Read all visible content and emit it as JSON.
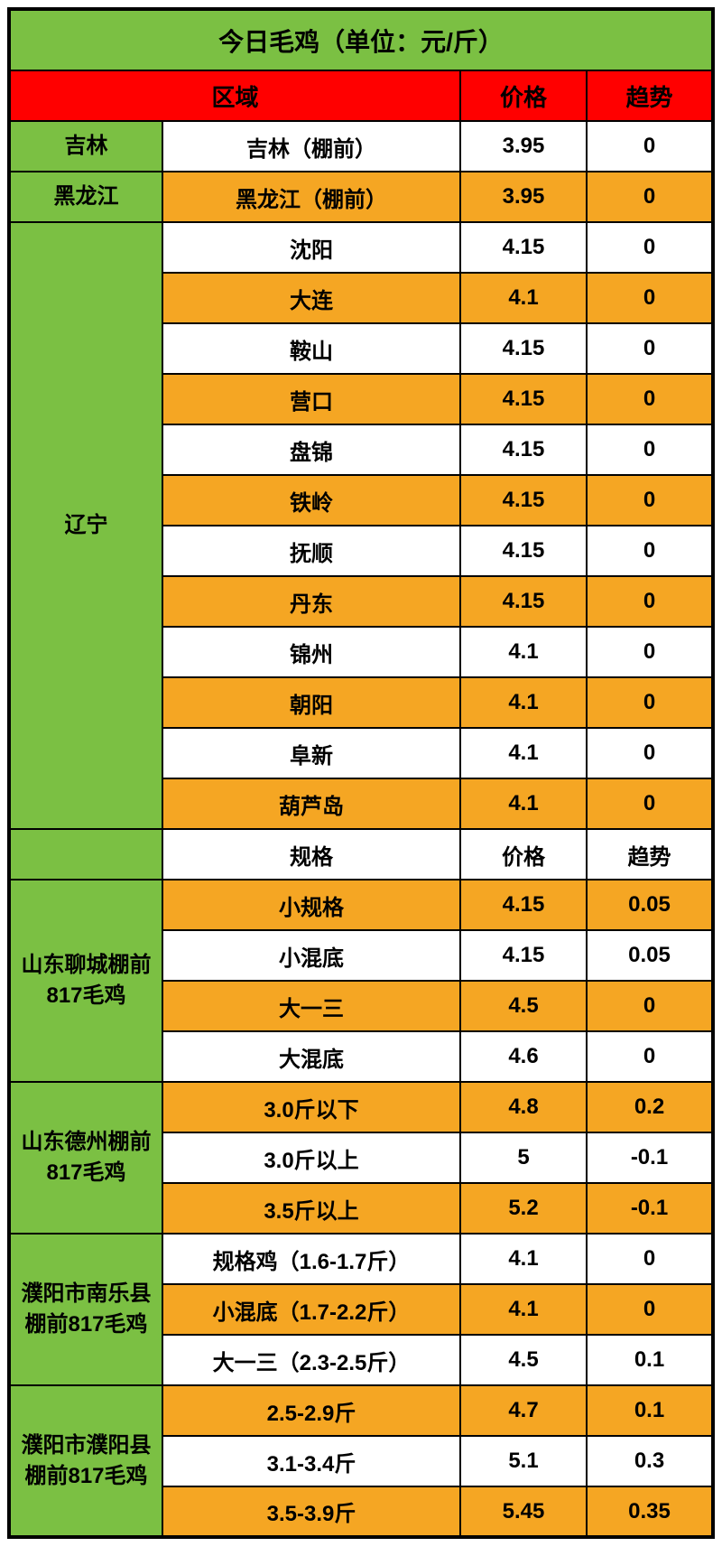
{
  "title": "今日毛鸡（单位：元/斤）",
  "headers": {
    "region": "区域",
    "price": "价格",
    "trend": "趋势",
    "spec": "规格"
  },
  "colors": {
    "green": "#7bc043",
    "red": "#ff0000",
    "orange": "#f5a623",
    "white": "#ffffff",
    "border": "#000000",
    "text": "#000000"
  },
  "fontsize": {
    "title": 28,
    "header": 26,
    "cell": 24
  },
  "sections": [
    {
      "region": "吉林",
      "rows": [
        {
          "spec": "吉林（棚前）",
          "price": "3.95",
          "trend": "0",
          "bg": "white"
        }
      ]
    },
    {
      "region": "黑龙江",
      "rows": [
        {
          "spec": "黑龙江（棚前）",
          "price": "3.95",
          "trend": "0",
          "bg": "orange"
        }
      ]
    },
    {
      "region": "辽宁",
      "rows": [
        {
          "spec": "沈阳",
          "price": "4.15",
          "trend": "0",
          "bg": "white"
        },
        {
          "spec": "大连",
          "price": "4.1",
          "trend": "0",
          "bg": "orange"
        },
        {
          "spec": "鞍山",
          "price": "4.15",
          "trend": "0",
          "bg": "white"
        },
        {
          "spec": "营口",
          "price": "4.15",
          "trend": "0",
          "bg": "orange"
        },
        {
          "spec": "盘锦",
          "price": "4.15",
          "trend": "0",
          "bg": "white"
        },
        {
          "spec": "铁岭",
          "price": "4.15",
          "trend": "0",
          "bg": "orange"
        },
        {
          "spec": "抚顺",
          "price": "4.15",
          "trend": "0",
          "bg": "white"
        },
        {
          "spec": "丹东",
          "price": "4.15",
          "trend": "0",
          "bg": "orange"
        },
        {
          "spec": "锦州",
          "price": "4.1",
          "trend": "0",
          "bg": "white"
        },
        {
          "spec": "朝阳",
          "price": "4.1",
          "trend": "0",
          "bg": "orange"
        },
        {
          "spec": "阜新",
          "price": "4.1",
          "trend": "0",
          "bg": "white"
        },
        {
          "spec": "葫芦岛",
          "price": "4.1",
          "trend": "0",
          "bg": "orange"
        }
      ]
    }
  ],
  "subheader": {
    "region": "",
    "spec": "规格",
    "price": "价格",
    "trend": "趋势"
  },
  "sections2": [
    {
      "region": "山东聊城棚前817毛鸡",
      "rows": [
        {
          "spec": "小规格",
          "price": "4.15",
          "trend": "0.05",
          "bg": "orange"
        },
        {
          "spec": "小混底",
          "price": "4.15",
          "trend": "0.05",
          "bg": "white"
        },
        {
          "spec": "大一三",
          "price": "4.5",
          "trend": "0",
          "bg": "orange"
        },
        {
          "spec": "大混底",
          "price": "4.6",
          "trend": "0",
          "bg": "white"
        }
      ]
    },
    {
      "region": "山东德州棚前817毛鸡",
      "rows": [
        {
          "spec": "3.0斤以下",
          "price": "4.8",
          "trend": "0.2",
          "bg": "orange"
        },
        {
          "spec": "3.0斤以上",
          "price": "5",
          "trend": "-0.1",
          "bg": "white"
        },
        {
          "spec": "3.5斤以上",
          "price": "5.2",
          "trend": "-0.1",
          "bg": "orange"
        }
      ]
    },
    {
      "region": "濮阳市南乐县棚前817毛鸡",
      "rows": [
        {
          "spec": "规格鸡（1.6-1.7斤）",
          "price": "4.1",
          "trend": "0",
          "bg": "white"
        },
        {
          "spec": "小混底（1.7-2.2斤）",
          "price": "4.1",
          "trend": "0",
          "bg": "orange"
        },
        {
          "spec": "大一三（2.3-2.5斤）",
          "price": "4.5",
          "trend": "0.1",
          "bg": "white"
        }
      ]
    },
    {
      "region": "濮阳市濮阳县棚前817毛鸡",
      "rows": [
        {
          "spec": "2.5-2.9斤",
          "price": "4.7",
          "trend": "0.1",
          "bg": "orange"
        },
        {
          "spec": "3.1-3.4斤",
          "price": "5.1",
          "trend": "0.3",
          "bg": "white"
        },
        {
          "spec": "3.5-3.9斤",
          "price": "5.45",
          "trend": "0.35",
          "bg": "orange"
        }
      ]
    }
  ]
}
